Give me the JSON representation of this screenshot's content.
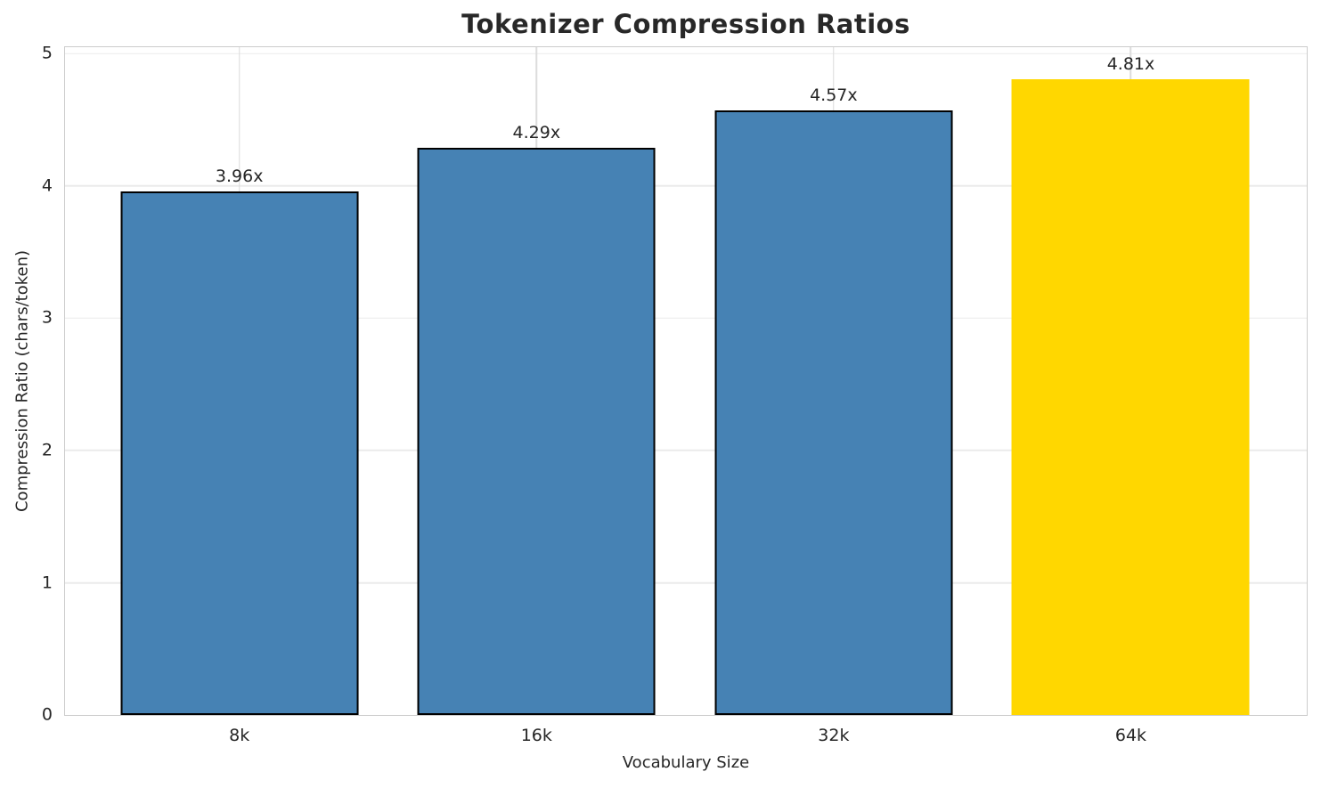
{
  "chart_data": {
    "type": "bar",
    "title": "Tokenizer Compression Ratios",
    "xlabel": "Vocabulary Size",
    "ylabel": "Compression Ratio (chars/token)",
    "categories": [
      "8k",
      "16k",
      "32k",
      "64k"
    ],
    "values": [
      3.96,
      4.29,
      4.57,
      4.81
    ],
    "bar_labels": [
      "3.96x",
      "4.29x",
      "4.57x",
      "4.81x"
    ],
    "yticks": [
      0,
      1,
      2,
      3,
      4,
      5
    ],
    "ylim": [
      0,
      5.05
    ],
    "grid": true,
    "legend": "none",
    "bar_colors": [
      "#4682b4",
      "#4682b4",
      "#4682b4",
      "#ffd700"
    ],
    "bar_edge_colors": [
      "#000000",
      "#000000",
      "#000000",
      "none"
    ],
    "highlight_index": 3
  },
  "colors": {
    "bar_default": "#4682b4",
    "bar_highlight": "#ffd700",
    "bar_edge": "#000000",
    "grid_h": "#ebebeb",
    "grid_v": "#dcdcdc",
    "spine": "#cccccc",
    "text": "#262626",
    "background": "#ffffff"
  }
}
